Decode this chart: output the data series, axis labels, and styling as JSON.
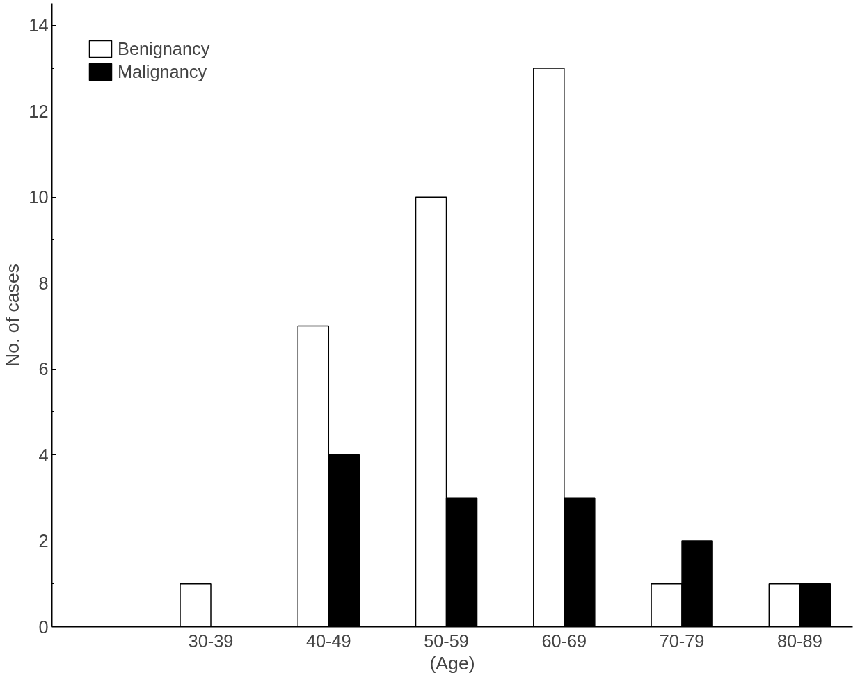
{
  "chart_data": {
    "type": "bar",
    "xlabel": "(Age)",
    "ylabel": "No. of cases",
    "categories": [
      "30-39",
      "40-49",
      "50-59",
      "60-69",
      "70-79",
      "80-89"
    ],
    "series": [
      {
        "name": "Benignancy",
        "color": "#ffffff",
        "values": [
          1,
          7,
          10,
          13,
          1,
          1
        ]
      },
      {
        "name": "Malignancy",
        "color": "#000000",
        "values": [
          0,
          4,
          3,
          3,
          2,
          1
        ]
      }
    ],
    "ylim": [
      0,
      14.5
    ],
    "yticks": [
      0,
      2,
      4,
      6,
      8,
      10,
      12,
      14
    ],
    "grid": false,
    "legend": "top left"
  }
}
